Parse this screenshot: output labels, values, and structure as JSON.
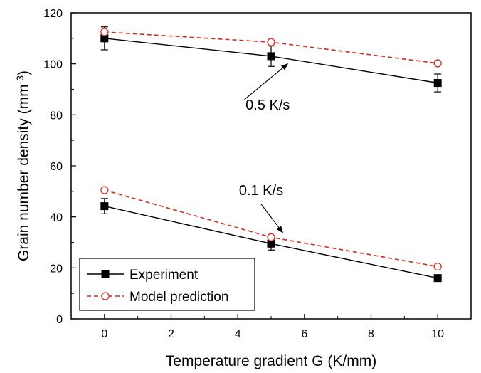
{
  "chart_data": {
    "type": "line",
    "xlabel": "Temperature gradient G (K/mm)",
    "ylabel_main": "Grain number density (mm",
    "ylabel_sup": "-3",
    "ylabel_close": ")",
    "xlim": [
      -1,
      11
    ],
    "ylim": [
      0,
      120
    ],
    "xticks": [
      0,
      2,
      4,
      6,
      8,
      10
    ],
    "yticks": [
      0,
      20,
      40,
      60,
      80,
      100,
      120
    ],
    "grid": false,
    "legend_position": "bottom-left",
    "series": [
      {
        "name": "Experiment",
        "group": "0.5 K/s",
        "style": "experiment",
        "color": "#000000",
        "x": [
          0,
          5,
          10
        ],
        "y": [
          110.0,
          103.0,
          92.5
        ],
        "err": [
          4.5,
          4.0,
          3.5
        ]
      },
      {
        "name": "Model prediction",
        "group": "0.5 K/s",
        "style": "model",
        "color": "#d62a1e",
        "x": [
          0,
          5,
          10
        ],
        "y": [
          112.5,
          108.5,
          100.2
        ]
      },
      {
        "name": "Experiment",
        "group": "0.1 K/s",
        "style": "experiment",
        "color": "#000000",
        "x": [
          0,
          5,
          10
        ],
        "y": [
          44.2,
          29.5,
          16.0
        ],
        "err": [
          3.0,
          2.5,
          0.5
        ]
      },
      {
        "name": "Model prediction",
        "group": "0.1 K/s",
        "style": "model",
        "color": "#d62a1e",
        "x": [
          0,
          5,
          10
        ],
        "y": [
          50.5,
          32.0,
          20.5
        ]
      }
    ],
    "annotations": [
      {
        "text": "0.5 K/s",
        "at": [
          4.9,
          82
        ],
        "arrow_from": [
          4.2,
          86
        ],
        "arrow_to": [
          5.5,
          100
        ]
      },
      {
        "text": "0.1 K/s",
        "at": [
          4.7,
          48.5
        ],
        "arrow_from": [
          4.7,
          45
        ],
        "arrow_to": [
          5.35,
          33.8
        ]
      }
    ],
    "legend": [
      {
        "label": "Experiment",
        "style": "experiment"
      },
      {
        "label": "Model prediction",
        "style": "model"
      }
    ]
  }
}
